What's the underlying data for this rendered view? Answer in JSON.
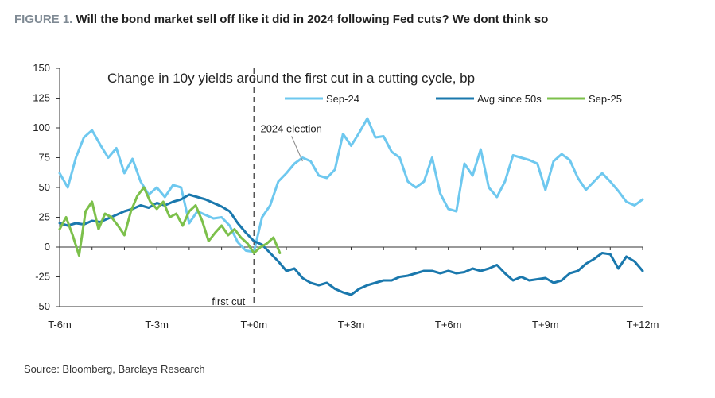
{
  "figure": {
    "number": "FIGURE 1.",
    "title": "Will the bond market sell off like it did in 2024 following Fed cuts? We dont think so",
    "source": "Source: Bloomberg, Barclays Research"
  },
  "chart_data": {
    "type": "line",
    "title": "Change in 10y yields around the first cut in a cutting cycle, bp",
    "xlabel": "",
    "ylabel": "",
    "x_ticks": [
      "T-6m",
      "T-3m",
      "T+0m",
      "T+3m",
      "T+6m",
      "T+9m",
      "T+12m"
    ],
    "xlim": [
      -6,
      12
    ],
    "ylim": [
      -50,
      150
    ],
    "y_ticks": [
      -50,
      -25,
      0,
      25,
      50,
      75,
      100,
      125,
      150
    ],
    "legend_position": "top-right",
    "grid": false,
    "vline": {
      "x": 0,
      "style": "dashed"
    },
    "annotations": [
      {
        "text": "first cut",
        "x": -1.3,
        "y": -46
      },
      {
        "text": "2024 election",
        "x": 0.2,
        "y": 99,
        "arrow_to": [
          1.5,
          72
        ]
      }
    ],
    "series": [
      {
        "name": "Sep-24",
        "color": "#6ec8ef",
        "x": [
          -6.0,
          -5.75,
          -5.5,
          -5.25,
          -5.0,
          -4.75,
          -4.5,
          -4.25,
          -4.0,
          -3.75,
          -3.5,
          -3.25,
          -3.0,
          -2.75,
          -2.5,
          -2.25,
          -2.0,
          -1.75,
          -1.5,
          -1.25,
          -1.0,
          -0.75,
          -0.5,
          -0.25,
          0.0,
          0.25,
          0.5,
          0.75,
          1.0,
          1.25,
          1.5,
          1.75,
          2.0,
          2.25,
          2.5,
          2.75,
          3.0,
          3.25,
          3.5,
          3.75,
          4.0,
          4.25,
          4.5,
          4.75,
          5.0,
          5.25,
          5.5,
          5.75,
          6.0,
          6.25,
          6.5,
          6.75,
          7.0,
          7.25,
          7.5,
          7.75,
          8.0,
          8.25,
          8.5,
          8.75,
          9.0,
          9.25,
          9.5,
          9.75,
          10.0,
          10.25,
          10.5,
          10.75,
          11.0,
          11.25,
          11.5,
          11.75,
          12.0
        ],
        "values": [
          62,
          50,
          75,
          92,
          98,
          86,
          75,
          83,
          62,
          74,
          55,
          44,
          50,
          42,
          52,
          50,
          20,
          30,
          27,
          24,
          25,
          18,
          4,
          -3,
          -4,
          25,
          35,
          55,
          62,
          70,
          75,
          72,
          60,
          58,
          65,
          95,
          85,
          96,
          108,
          92,
          93,
          80,
          75,
          55,
          50,
          55,
          75,
          45,
          32,
          30,
          70,
          60,
          82,
          50,
          42,
          55,
          77,
          75,
          73,
          70,
          48,
          72,
          78,
          73,
          58,
          48,
          55,
          62,
          55,
          47,
          38,
          35,
          40
        ]
      },
      {
        "name": "Avg since 50s",
        "color": "#1a78ad",
        "x": [
          -6.0,
          -5.75,
          -5.5,
          -5.25,
          -5.0,
          -4.75,
          -4.5,
          -4.25,
          -4.0,
          -3.75,
          -3.5,
          -3.25,
          -3.0,
          -2.75,
          -2.5,
          -2.25,
          -2.0,
          -1.75,
          -1.5,
          -1.25,
          -1.0,
          -0.75,
          -0.5,
          -0.25,
          0.0,
          0.25,
          0.5,
          0.75,
          1.0,
          1.25,
          1.5,
          1.75,
          2.0,
          2.25,
          2.5,
          2.75,
          3.0,
          3.25,
          3.5,
          3.75,
          4.0,
          4.25,
          4.5,
          4.75,
          5.0,
          5.25,
          5.5,
          5.75,
          6.0,
          6.25,
          6.5,
          6.75,
          7.0,
          7.25,
          7.5,
          7.75,
          8.0,
          8.25,
          8.5,
          8.75,
          9.0,
          9.25,
          9.5,
          9.75,
          10.0,
          10.25,
          10.5,
          10.75,
          11.0,
          11.25,
          11.5,
          11.75,
          12.0
        ],
        "values": [
          20,
          18,
          20,
          19,
          22,
          21,
          24,
          27,
          30,
          32,
          35,
          33,
          37,
          35,
          38,
          40,
          44,
          42,
          40,
          37,
          34,
          30,
          20,
          12,
          5,
          2,
          -5,
          -12,
          -20,
          -18,
          -26,
          -30,
          -32,
          -30,
          -35,
          -38,
          -40,
          -35,
          -32,
          -30,
          -28,
          -28,
          -25,
          -24,
          -22,
          -20,
          -20,
          -22,
          -20,
          -22,
          -21,
          -18,
          -20,
          -18,
          -15,
          -22,
          -28,
          -25,
          -28,
          -27,
          -26,
          -30,
          -28,
          -22,
          -20,
          -14,
          -10,
          -5,
          -6,
          -18,
          -8,
          -12,
          -20
        ]
      },
      {
        "name": "Sep-25",
        "color": "#7cc04b",
        "x": [
          -6.0,
          -5.8,
          -5.6,
          -5.4,
          -5.2,
          -5.0,
          -4.8,
          -4.6,
          -4.4,
          -4.2,
          -4.0,
          -3.8,
          -3.6,
          -3.4,
          -3.2,
          -3.0,
          -2.8,
          -2.6,
          -2.4,
          -2.2,
          -2.0,
          -1.8,
          -1.6,
          -1.4,
          -1.2,
          -1.0,
          -0.8,
          -0.6,
          -0.4,
          -0.2,
          0.0,
          0.2,
          0.4,
          0.6,
          0.8
        ],
        "values": [
          15,
          25,
          10,
          -7,
          30,
          38,
          15,
          28,
          25,
          18,
          10,
          30,
          43,
          50,
          38,
          32,
          38,
          25,
          28,
          18,
          30,
          35,
          22,
          5,
          12,
          18,
          10,
          15,
          8,
          3,
          -5,
          0,
          3,
          8,
          -5
        ]
      }
    ]
  }
}
